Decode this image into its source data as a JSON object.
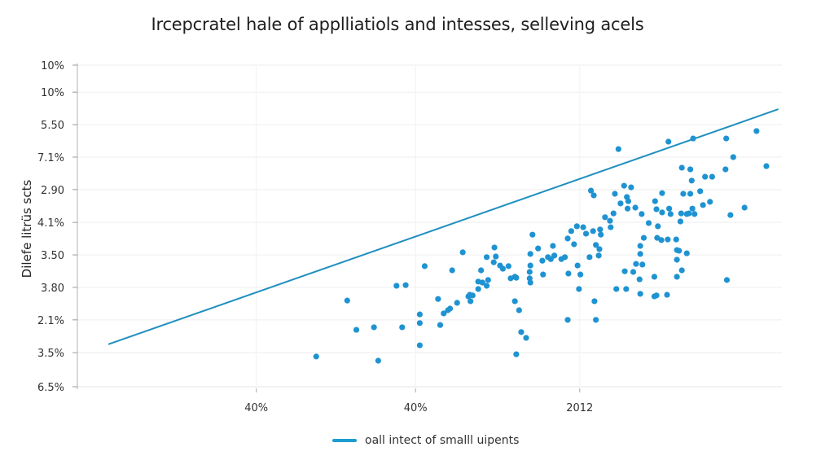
{
  "chart_data": {
    "type": "scatter",
    "title": "Ircepcratel hale of applliatiols and intesses, selleving acels",
    "xlabel": "",
    "ylabel": "Dilefe litrüs scts",
    "x_range": [
      0,
      100
    ],
    "y_range": [
      0,
      100
    ],
    "grid": true,
    "y_tick_labels": [
      "6.5%",
      "3.5%",
      "2.1%",
      "3.80",
      "3.50",
      "4.1%",
      "2.90",
      "7.1%",
      "5.50",
      "10%",
      "10%"
    ],
    "y_tick_values": [
      0,
      10.6,
      20.8,
      30.9,
      41.0,
      51.1,
      61.3,
      71.4,
      81.5,
      91.6,
      100
    ],
    "x_tick_labels": [
      "40%",
      "40%",
      "2012"
    ],
    "x_tick_values": [
      25.4,
      48.0,
      71.3
    ],
    "colors": {
      "points": "#1f93d1",
      "line": "#1f8fbf",
      "grid": "#f0f0f0",
      "axis": "#bdbdbd"
    },
    "legend": {
      "position": "bottom-center",
      "entries": [
        {
          "label": "oall intect of smalll uipents",
          "type": "line"
        }
      ]
    },
    "series": [
      {
        "name": "oall intect of smalll uipents",
        "type": "line",
        "points": [
          {
            "x": 4.4,
            "y": 13.2
          },
          {
            "x": 99.5,
            "y": 86.3
          }
        ]
      },
      {
        "name": "points",
        "type": "scatter",
        "points": [
          {
            "x": 33.9,
            "y": 9.4
          },
          {
            "x": 38.3,
            "y": 26.8
          },
          {
            "x": 39.6,
            "y": 17.7
          },
          {
            "x": 42.1,
            "y": 18.5
          },
          {
            "x": 42.7,
            "y": 8.1
          },
          {
            "x": 46.1,
            "y": 18.5
          },
          {
            "x": 46.6,
            "y": 31.6
          },
          {
            "x": 48.6,
            "y": 22.5
          },
          {
            "x": 48.6,
            "y": 19.8
          },
          {
            "x": 48.6,
            "y": 12.9
          },
          {
            "x": 49.3,
            "y": 37.5
          },
          {
            "x": 51.2,
            "y": 27.3
          },
          {
            "x": 51.5,
            "y": 19.2
          },
          {
            "x": 52.0,
            "y": 22.8
          },
          {
            "x": 52.6,
            "y": 23.8
          },
          {
            "x": 52.9,
            "y": 24.3
          },
          {
            "x": 53.9,
            "y": 26.1
          },
          {
            "x": 54.7,
            "y": 41.8
          },
          {
            "x": 53.2,
            "y": 36.2
          },
          {
            "x": 55.5,
            "y": 28.1
          },
          {
            "x": 55.7,
            "y": 28.6
          },
          {
            "x": 55.8,
            "y": 26.6
          },
          {
            "x": 56.1,
            "y": 28.4
          },
          {
            "x": 56.9,
            "y": 30.4
          },
          {
            "x": 56.9,
            "y": 32.7
          },
          {
            "x": 57.5,
            "y": 32.4
          },
          {
            "x": 57.3,
            "y": 36.2
          },
          {
            "x": 58.1,
            "y": 40.3
          },
          {
            "x": 58.3,
            "y": 33.2
          },
          {
            "x": 58.1,
            "y": 31.4
          },
          {
            "x": 59.2,
            "y": 43.3
          },
          {
            "x": 59.4,
            "y": 40.5
          },
          {
            "x": 60.0,
            "y": 37.7
          },
          {
            "x": 60.4,
            "y": 36.7
          },
          {
            "x": 61.2,
            "y": 37.5
          },
          {
            "x": 61.5,
            "y": 33.7
          },
          {
            "x": 62.1,
            "y": 34.2
          },
          {
            "x": 62.3,
            "y": 33.9
          },
          {
            "x": 62.1,
            "y": 26.6
          },
          {
            "x": 62.7,
            "y": 23.8
          },
          {
            "x": 63.0,
            "y": 17.0
          },
          {
            "x": 63.7,
            "y": 15.2
          },
          {
            "x": 62.3,
            "y": 10.1
          },
          {
            "x": 64.3,
            "y": 32.4
          },
          {
            "x": 64.2,
            "y": 33.7
          },
          {
            "x": 64.2,
            "y": 35.7
          },
          {
            "x": 64.3,
            "y": 37.7
          },
          {
            "x": 64.3,
            "y": 41.3
          },
          {
            "x": 64.6,
            "y": 47.3
          },
          {
            "x": 65.4,
            "y": 43.0
          },
          {
            "x": 66.1,
            "y": 34.9
          },
          {
            "x": 66.0,
            "y": 39.2
          },
          {
            "x": 66.8,
            "y": 40.3
          },
          {
            "x": 67.2,
            "y": 39.7
          },
          {
            "x": 67.5,
            "y": 43.8
          },
          {
            "x": 67.7,
            "y": 40.8
          },
          {
            "x": 68.7,
            "y": 39.7
          },
          {
            "x": 69.2,
            "y": 40.3
          },
          {
            "x": 69.6,
            "y": 46.1
          },
          {
            "x": 70.1,
            "y": 48.4
          },
          {
            "x": 70.5,
            "y": 44.3
          },
          {
            "x": 70.9,
            "y": 49.9
          },
          {
            "x": 69.7,
            "y": 35.2
          },
          {
            "x": 71.0,
            "y": 37.7
          },
          {
            "x": 71.4,
            "y": 34.9
          },
          {
            "x": 71.2,
            "y": 30.4
          },
          {
            "x": 69.6,
            "y": 20.8
          },
          {
            "x": 73.6,
            "y": 20.8
          },
          {
            "x": 73.4,
            "y": 26.6
          },
          {
            "x": 76.5,
            "y": 30.4
          },
          {
            "x": 71.8,
            "y": 49.6
          },
          {
            "x": 73.2,
            "y": 48.4
          },
          {
            "x": 73.6,
            "y": 44.1
          },
          {
            "x": 74.3,
            "y": 47.3
          },
          {
            "x": 74.1,
            "y": 42.8
          },
          {
            "x": 74.0,
            "y": 40.8
          },
          {
            "x": 74.2,
            "y": 48.9
          },
          {
            "x": 72.7,
            "y": 40.3
          },
          {
            "x": 72.2,
            "y": 47.6
          },
          {
            "x": 74.9,
            "y": 52.7
          },
          {
            "x": 75.6,
            "y": 51.6
          },
          {
            "x": 76.1,
            "y": 53.9
          },
          {
            "x": 75.7,
            "y": 49.6
          },
          {
            "x": 77.1,
            "y": 57.0
          },
          {
            "x": 78.1,
            "y": 55.4
          },
          {
            "x": 78.2,
            "y": 57.7
          },
          {
            "x": 78.0,
            "y": 59.0
          },
          {
            "x": 73.3,
            "y": 59.5
          },
          {
            "x": 72.9,
            "y": 61.0
          },
          {
            "x": 76.3,
            "y": 60.0
          },
          {
            "x": 77.6,
            "y": 62.5
          },
          {
            "x": 78.6,
            "y": 62.0
          },
          {
            "x": 79.2,
            "y": 55.7
          },
          {
            "x": 80.1,
            "y": 53.7
          },
          {
            "x": 81.1,
            "y": 50.9
          },
          {
            "x": 80.4,
            "y": 46.3
          },
          {
            "x": 79.9,
            "y": 43.8
          },
          {
            "x": 82.3,
            "y": 46.3
          },
          {
            "x": 82.9,
            "y": 45.6
          },
          {
            "x": 83.8,
            "y": 45.8
          },
          {
            "x": 85.0,
            "y": 45.8
          },
          {
            "x": 85.1,
            "y": 42.5
          },
          {
            "x": 79.3,
            "y": 38.2
          },
          {
            "x": 79.9,
            "y": 41.3
          },
          {
            "x": 80.2,
            "y": 38.0
          },
          {
            "x": 78.9,
            "y": 35.7
          },
          {
            "x": 79.8,
            "y": 33.4
          },
          {
            "x": 77.7,
            "y": 35.9
          },
          {
            "x": 81.9,
            "y": 34.2
          },
          {
            "x": 82.2,
            "y": 28.4
          },
          {
            "x": 77.9,
            "y": 30.4
          },
          {
            "x": 79.9,
            "y": 28.9
          },
          {
            "x": 81.9,
            "y": 28.1
          },
          {
            "x": 85.1,
            "y": 34.2
          },
          {
            "x": 85.1,
            "y": 39.5
          },
          {
            "x": 85.8,
            "y": 36.2
          },
          {
            "x": 82.4,
            "y": 49.9
          },
          {
            "x": 83.0,
            "y": 54.2
          },
          {
            "x": 82.2,
            "y": 55.2
          },
          {
            "x": 82.0,
            "y": 57.7
          },
          {
            "x": 83.0,
            "y": 60.2
          },
          {
            "x": 84.0,
            "y": 55.4
          },
          {
            "x": 84.2,
            "y": 53.7
          },
          {
            "x": 86.8,
            "y": 53.9
          },
          {
            "x": 85.6,
            "y": 51.4
          },
          {
            "x": 85.7,
            "y": 53.9
          },
          {
            "x": 87.3,
            "y": 55.4
          },
          {
            "x": 88.8,
            "y": 56.5
          },
          {
            "x": 89.8,
            "y": 57.5
          },
          {
            "x": 86.5,
            "y": 53.7
          },
          {
            "x": 87.6,
            "y": 53.7
          },
          {
            "x": 92.7,
            "y": 53.4
          },
          {
            "x": 94.7,
            "y": 55.7
          },
          {
            "x": 86.0,
            "y": 60.0
          },
          {
            "x": 87.0,
            "y": 60.0
          },
          {
            "x": 92.0,
            "y": 67.6
          },
          {
            "x": 93.1,
            "y": 71.4
          },
          {
            "x": 97.8,
            "y": 68.6
          },
          {
            "x": 85.8,
            "y": 68.1
          },
          {
            "x": 83.9,
            "y": 76.2
          },
          {
            "x": 87.4,
            "y": 77.2
          },
          {
            "x": 92.1,
            "y": 77.2
          },
          {
            "x": 96.4,
            "y": 79.5
          },
          {
            "x": 76.8,
            "y": 73.9
          },
          {
            "x": 87.0,
            "y": 67.6
          },
          {
            "x": 87.2,
            "y": 64.1
          },
          {
            "x": 89.1,
            "y": 65.3
          },
          {
            "x": 90.1,
            "y": 65.3
          },
          {
            "x": 88.4,
            "y": 60.8
          },
          {
            "x": 85.4,
            "y": 42.3
          },
          {
            "x": 86.5,
            "y": 41.5
          },
          {
            "x": 83.7,
            "y": 28.6
          },
          {
            "x": 92.2,
            "y": 33.2
          },
          {
            "x": 59.1,
            "y": 38.7
          },
          {
            "x": 45.3,
            "y": 31.4
          }
        ]
      }
    ]
  }
}
